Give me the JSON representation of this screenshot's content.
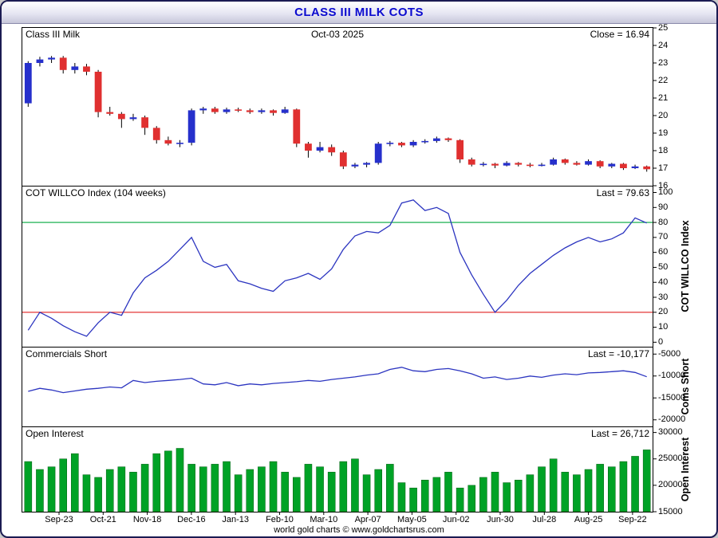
{
  "title": "CLASS III MILK COTS",
  "footer": "world gold charts © www.goldchartsrus.com",
  "colors": {
    "title_text": "#0b0bcf",
    "candle_up": "#2630cc",
    "candle_down": "#e03030",
    "wick": "#000000",
    "line": "#2c35c0",
    "threshold_high": "#00a83c",
    "threshold_low": "#e02020",
    "bar_fill": "#00a226",
    "bar_edge": "#005f12",
    "panel_border": "#000000"
  },
  "x_labels": [
    "Sep-23",
    "Oct-21",
    "Nov-18",
    "Dec-16",
    "Jan-13",
    "Feb-10",
    "Mar-10",
    "Apr-07",
    "May-05",
    "Jun-02",
    "Jun-30",
    "Jul-28",
    "Aug-25",
    "Sep-22"
  ],
  "chart_data": [
    {
      "type": "candlestick",
      "label": "Class III Milk",
      "date": "Oct-03  2025",
      "right_label": "Close = 16.94",
      "close": 16.94,
      "ylim": [
        16,
        25
      ],
      "yticks": [
        25,
        24,
        23,
        22,
        21,
        20,
        19,
        18,
        17,
        16
      ],
      "candles": [
        [
          20.7,
          23.1,
          20.5,
          23.0
        ],
        [
          23.0,
          23.35,
          22.8,
          23.2
        ],
        [
          23.2,
          23.4,
          23.0,
          23.3
        ],
        [
          23.3,
          23.4,
          22.4,
          22.6
        ],
        [
          22.6,
          23.0,
          22.4,
          22.8
        ],
        [
          22.8,
          22.95,
          22.3,
          22.5
        ],
        [
          22.5,
          22.6,
          19.9,
          20.2
        ],
        [
          20.2,
          20.5,
          20.0,
          20.1
        ],
        [
          20.1,
          20.2,
          19.3,
          19.8
        ],
        [
          19.8,
          20.1,
          19.7,
          19.9
        ],
        [
          19.9,
          20.0,
          18.9,
          19.3
        ],
        [
          19.3,
          19.4,
          18.4,
          18.6
        ],
        [
          18.6,
          18.8,
          18.3,
          18.4
        ],
        [
          18.4,
          18.6,
          18.2,
          18.45
        ],
        [
          18.45,
          20.4,
          18.3,
          20.3
        ],
        [
          20.3,
          20.5,
          20.1,
          20.4
        ],
        [
          20.4,
          20.5,
          20.1,
          20.2
        ],
        [
          20.2,
          20.45,
          20.1,
          20.35
        ],
        [
          20.35,
          20.45,
          20.2,
          20.3
        ],
        [
          20.3,
          20.4,
          20.1,
          20.2
        ],
        [
          20.2,
          20.4,
          20.1,
          20.3
        ],
        [
          20.3,
          20.35,
          20.0,
          20.15
        ],
        [
          20.15,
          20.5,
          20.1,
          20.35
        ],
        [
          20.35,
          20.4,
          18.2,
          18.4
        ],
        [
          18.4,
          18.5,
          17.6,
          18.0
        ],
        [
          18.0,
          18.5,
          17.9,
          18.2
        ],
        [
          18.2,
          18.35,
          17.7,
          17.9
        ],
        [
          17.9,
          18.0,
          16.95,
          17.1
        ],
        [
          17.1,
          17.3,
          17.0,
          17.2
        ],
        [
          17.2,
          17.35,
          17.05,
          17.3
        ],
        [
          17.3,
          18.5,
          17.2,
          18.4
        ],
        [
          18.4,
          18.55,
          18.25,
          18.45
        ],
        [
          18.45,
          18.5,
          18.2,
          18.3
        ],
        [
          18.3,
          18.6,
          18.2,
          18.5
        ],
        [
          18.5,
          18.65,
          18.4,
          18.55
        ],
        [
          18.55,
          18.8,
          18.45,
          18.7
        ],
        [
          18.7,
          18.75,
          18.5,
          18.6
        ],
        [
          18.6,
          18.65,
          17.3,
          17.5
        ],
        [
          17.5,
          17.6,
          17.1,
          17.2
        ],
        [
          17.2,
          17.35,
          17.1,
          17.25
        ],
        [
          17.25,
          17.3,
          17.0,
          17.15
        ],
        [
          17.15,
          17.4,
          17.1,
          17.3
        ],
        [
          17.3,
          17.35,
          17.1,
          17.2
        ],
        [
          17.2,
          17.3,
          17.05,
          17.15
        ],
        [
          17.15,
          17.3,
          17.1,
          17.2
        ],
        [
          17.2,
          17.6,
          17.15,
          17.5
        ],
        [
          17.5,
          17.55,
          17.2,
          17.3
        ],
        [
          17.3,
          17.4,
          17.15,
          17.2
        ],
        [
          17.2,
          17.5,
          17.15,
          17.4
        ],
        [
          17.4,
          17.45,
          17.0,
          17.1
        ],
        [
          17.1,
          17.3,
          17.0,
          17.25
        ],
        [
          17.25,
          17.3,
          16.9,
          17.0
        ],
        [
          17.0,
          17.2,
          16.95,
          17.1
        ],
        [
          17.1,
          17.15,
          16.8,
          16.94
        ]
      ]
    },
    {
      "type": "line",
      "label": "COT WILLCO Index (104 weeks)",
      "right_label": "Last = 79.63",
      "last": 79.63,
      "axis_title": "COT WILLCO Index",
      "ylim": [
        -3,
        104
      ],
      "yticks": [
        100,
        90,
        80,
        70,
        60,
        50,
        40,
        30,
        20,
        10,
        0
      ],
      "thresholds": [
        {
          "value": 80,
          "color": "#00a83c"
        },
        {
          "value": 20,
          "color": "#e02020"
        }
      ],
      "values": [
        8,
        20,
        16,
        11,
        7,
        4,
        13,
        20,
        18,
        33,
        43,
        48,
        54,
        62,
        70,
        54,
        50,
        52,
        41,
        39,
        36,
        34,
        41,
        43,
        46,
        42,
        49,
        62,
        71,
        74,
        73,
        78,
        93,
        95,
        88,
        90,
        86,
        60,
        45,
        32,
        20,
        28,
        38,
        46,
        52,
        58,
        63,
        67,
        70,
        67,
        69,
        73,
        83,
        79.63
      ]
    },
    {
      "type": "line",
      "label": "Commercials Short",
      "right_label": "Last = -10,177",
      "last": -10177,
      "axis_title": "Coms Short",
      "ylim": [
        -21500,
        -3500
      ],
      "yticks": [
        -5000,
        -10000,
        -15000,
        -20000
      ],
      "values": [
        -13500,
        -12800,
        -13200,
        -13800,
        -13400,
        -13000,
        -12800,
        -12500,
        -12700,
        -11000,
        -11500,
        -11200,
        -11000,
        -10800,
        -10500,
        -11800,
        -12000,
        -11500,
        -12200,
        -11800,
        -12000,
        -11700,
        -11500,
        -11300,
        -11000,
        -11200,
        -10800,
        -10500,
        -10200,
        -9800,
        -9500,
        -8500,
        -8000,
        -8800,
        -9000,
        -8500,
        -8300,
        -8800,
        -9500,
        -10500,
        -10200,
        -10800,
        -10500,
        -10000,
        -10300,
        -9800,
        -9500,
        -9700,
        -9300,
        -9200,
        -9000,
        -8800,
        -9200,
        -10177
      ]
    },
    {
      "type": "bar",
      "label": "Open Interest",
      "right_label": "Last = 26,712",
      "last": 26712,
      "axis_title": "Open Interest",
      "ylim": [
        15000,
        31000
      ],
      "yticks": [
        30000,
        25000,
        20000,
        15000
      ],
      "values": [
        24500,
        23000,
        23500,
        25000,
        26000,
        22000,
        21500,
        23000,
        23500,
        22500,
        24000,
        26000,
        26500,
        27000,
        24000,
        23500,
        24000,
        24500,
        22000,
        23000,
        23500,
        24500,
        22500,
        21500,
        24000,
        23500,
        22500,
        24500,
        25000,
        22000,
        23000,
        24000,
        20500,
        19500,
        21000,
        21500,
        22500,
        19500,
        20000,
        21500,
        22500,
        20500,
        21000,
        22000,
        23500,
        25000,
        22500,
        22000,
        23000,
        24000,
        23500,
        24500,
        25500,
        26712
      ]
    }
  ]
}
